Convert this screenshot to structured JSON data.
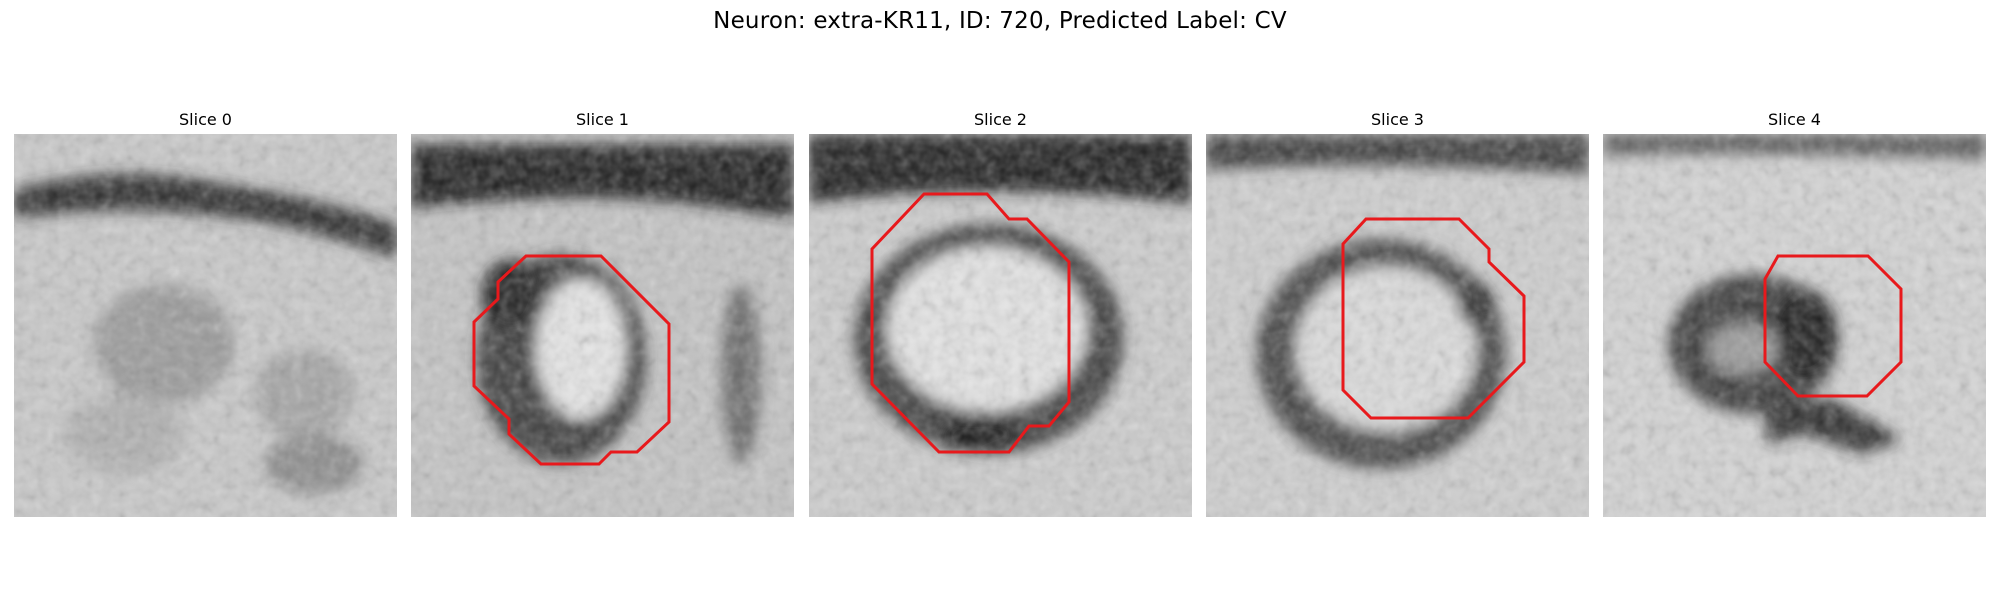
{
  "figure": {
    "title": "Neuron: extra-KR11, ID: 720, Predicted Label: CV"
  },
  "panels": [
    {
      "title": "Slice 0"
    },
    {
      "title": "Slice 1"
    },
    {
      "title": "Slice 2"
    },
    {
      "title": "Slice 3"
    },
    {
      "title": "Slice 4"
    }
  ],
  "colors": {
    "contour": "#e8191c",
    "membrane": "#1f1f1f",
    "background": "#cfcfcf"
  }
}
